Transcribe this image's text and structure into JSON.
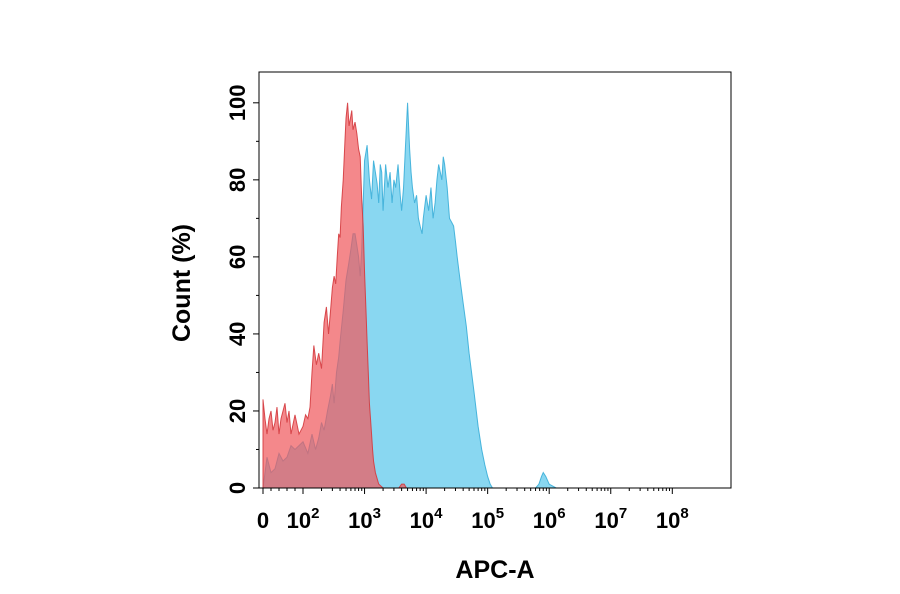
{
  "chart_data": {
    "type": "area",
    "title": "",
    "xlabel": "APC-A",
    "ylabel": "Count  (%)",
    "x_scale": "biexponential",
    "x_ticks": [
      {
        "value": 0,
        "base": "0",
        "exp": ""
      },
      {
        "value": 100,
        "base": "10",
        "exp": "2"
      },
      {
        "value": 1000,
        "base": "10",
        "exp": "3"
      },
      {
        "value": 10000,
        "base": "10",
        "exp": "4"
      },
      {
        "value": 100000,
        "base": "10",
        "exp": "5"
      },
      {
        "value": 1000000,
        "base": "10",
        "exp": "6"
      },
      {
        "value": 10000000,
        "base": "10",
        "exp": "7"
      },
      {
        "value": 100000000,
        "base": "10",
        "exp": "8"
      }
    ],
    "y_ticks": [
      "0",
      "20",
      "40",
      "60",
      "80",
      "100"
    ],
    "ylim": [
      0,
      108
    ],
    "grid": false,
    "series": [
      {
        "color": "#5bc8ec",
        "opacity": 0.72,
        "stroke": "#3aaed8",
        "x": [
          0,
          10,
          20,
          30,
          40,
          50,
          60,
          70,
          80,
          100,
          120,
          140,
          160,
          180,
          200,
          220,
          250,
          280,
          300,
          320,
          350,
          380,
          400,
          450,
          500,
          550,
          600,
          650,
          700,
          750,
          800,
          850,
          900,
          1000,
          1100,
          1200,
          1300,
          1400,
          1500,
          1600,
          1700,
          1800,
          1900,
          2000,
          2200,
          2400,
          2600,
          2800,
          3000,
          3200,
          3500,
          3800,
          4000,
          4300,
          4600,
          5000,
          5400,
          5700,
          6000,
          6500,
          7000,
          7500,
          8000,
          8600,
          9000,
          10000,
          11000,
          12000,
          13000,
          14000,
          15000,
          16000,
          17000,
          18000,
          19000,
          20000,
          22000,
          24000,
          26000,
          28000,
          30000,
          32000,
          35000,
          40000,
          45000,
          50000,
          60000,
          70000,
          80000,
          90000,
          100000,
          110000,
          120000,
          150000,
          200000,
          300000,
          500000,
          600000,
          680000,
          750000,
          800000,
          880000,
          1000000,
          1300000,
          2000000,
          10000000,
          100000000
        ],
        "y": [
          0,
          8,
          4,
          5,
          9,
          7,
          8,
          11,
          10,
          12,
          9,
          14,
          10,
          13,
          17,
          15,
          20,
          24,
          27,
          22,
          30,
          34,
          38,
          46,
          54,
          58,
          62,
          66,
          66,
          63,
          60,
          55,
          62,
          85,
          89,
          80,
          75,
          85,
          82,
          79,
          74,
          84,
          82,
          72,
          84,
          78,
          82,
          74,
          80,
          78,
          84,
          76,
          72,
          78,
          88,
          100,
          88,
          82,
          78,
          74,
          76,
          70,
          68,
          66,
          70,
          76,
          72,
          78,
          70,
          74,
          80,
          84,
          82,
          80,
          86,
          84,
          78,
          70,
          69,
          68,
          64,
          60,
          55,
          48,
          42,
          35,
          25,
          16,
          10,
          6,
          3,
          1,
          0,
          0,
          0,
          0,
          0,
          0,
          1,
          3,
          4,
          3,
          1,
          0,
          0,
          0,
          0
        ]
      },
      {
        "color": "#f05a5e",
        "opacity": 0.72,
        "stroke": "#d43a3e",
        "x": [
          0,
          5,
          10,
          15,
          20,
          25,
          30,
          35,
          40,
          45,
          50,
          55,
          60,
          65,
          70,
          80,
          90,
          100,
          110,
          120,
          130,
          140,
          150,
          165,
          180,
          200,
          220,
          240,
          260,
          280,
          300,
          320,
          340,
          360,
          380,
          400,
          420,
          450,
          480,
          500,
          530,
          560,
          590,
          620,
          650,
          700,
          750,
          800,
          850,
          900,
          950,
          1000,
          1050,
          1100,
          1150,
          1200,
          1250,
          1300,
          1350,
          1400,
          1500,
          1700,
          2000,
          3000,
          3600,
          4000,
          4400,
          4800,
          5200,
          6000,
          10000,
          100000,
          100000000
        ],
        "y": [
          23,
          18,
          14,
          18,
          20,
          15,
          17,
          21,
          14,
          18,
          20,
          22,
          17,
          20,
          14,
          19,
          14,
          16,
          19,
          18,
          21,
          30,
          37,
          32,
          35,
          31,
          43,
          47,
          40,
          46,
          52,
          55,
          53,
          60,
          66,
          65,
          73,
          80,
          90,
          96,
          100,
          94,
          96,
          98,
          93,
          95,
          92,
          88,
          86,
          75,
          68,
          56,
          47,
          38,
          30,
          22,
          18,
          14,
          10,
          7,
          4,
          1,
          0,
          0,
          0,
          1,
          1,
          0,
          0,
          0,
          0,
          0,
          0
        ]
      }
    ]
  }
}
